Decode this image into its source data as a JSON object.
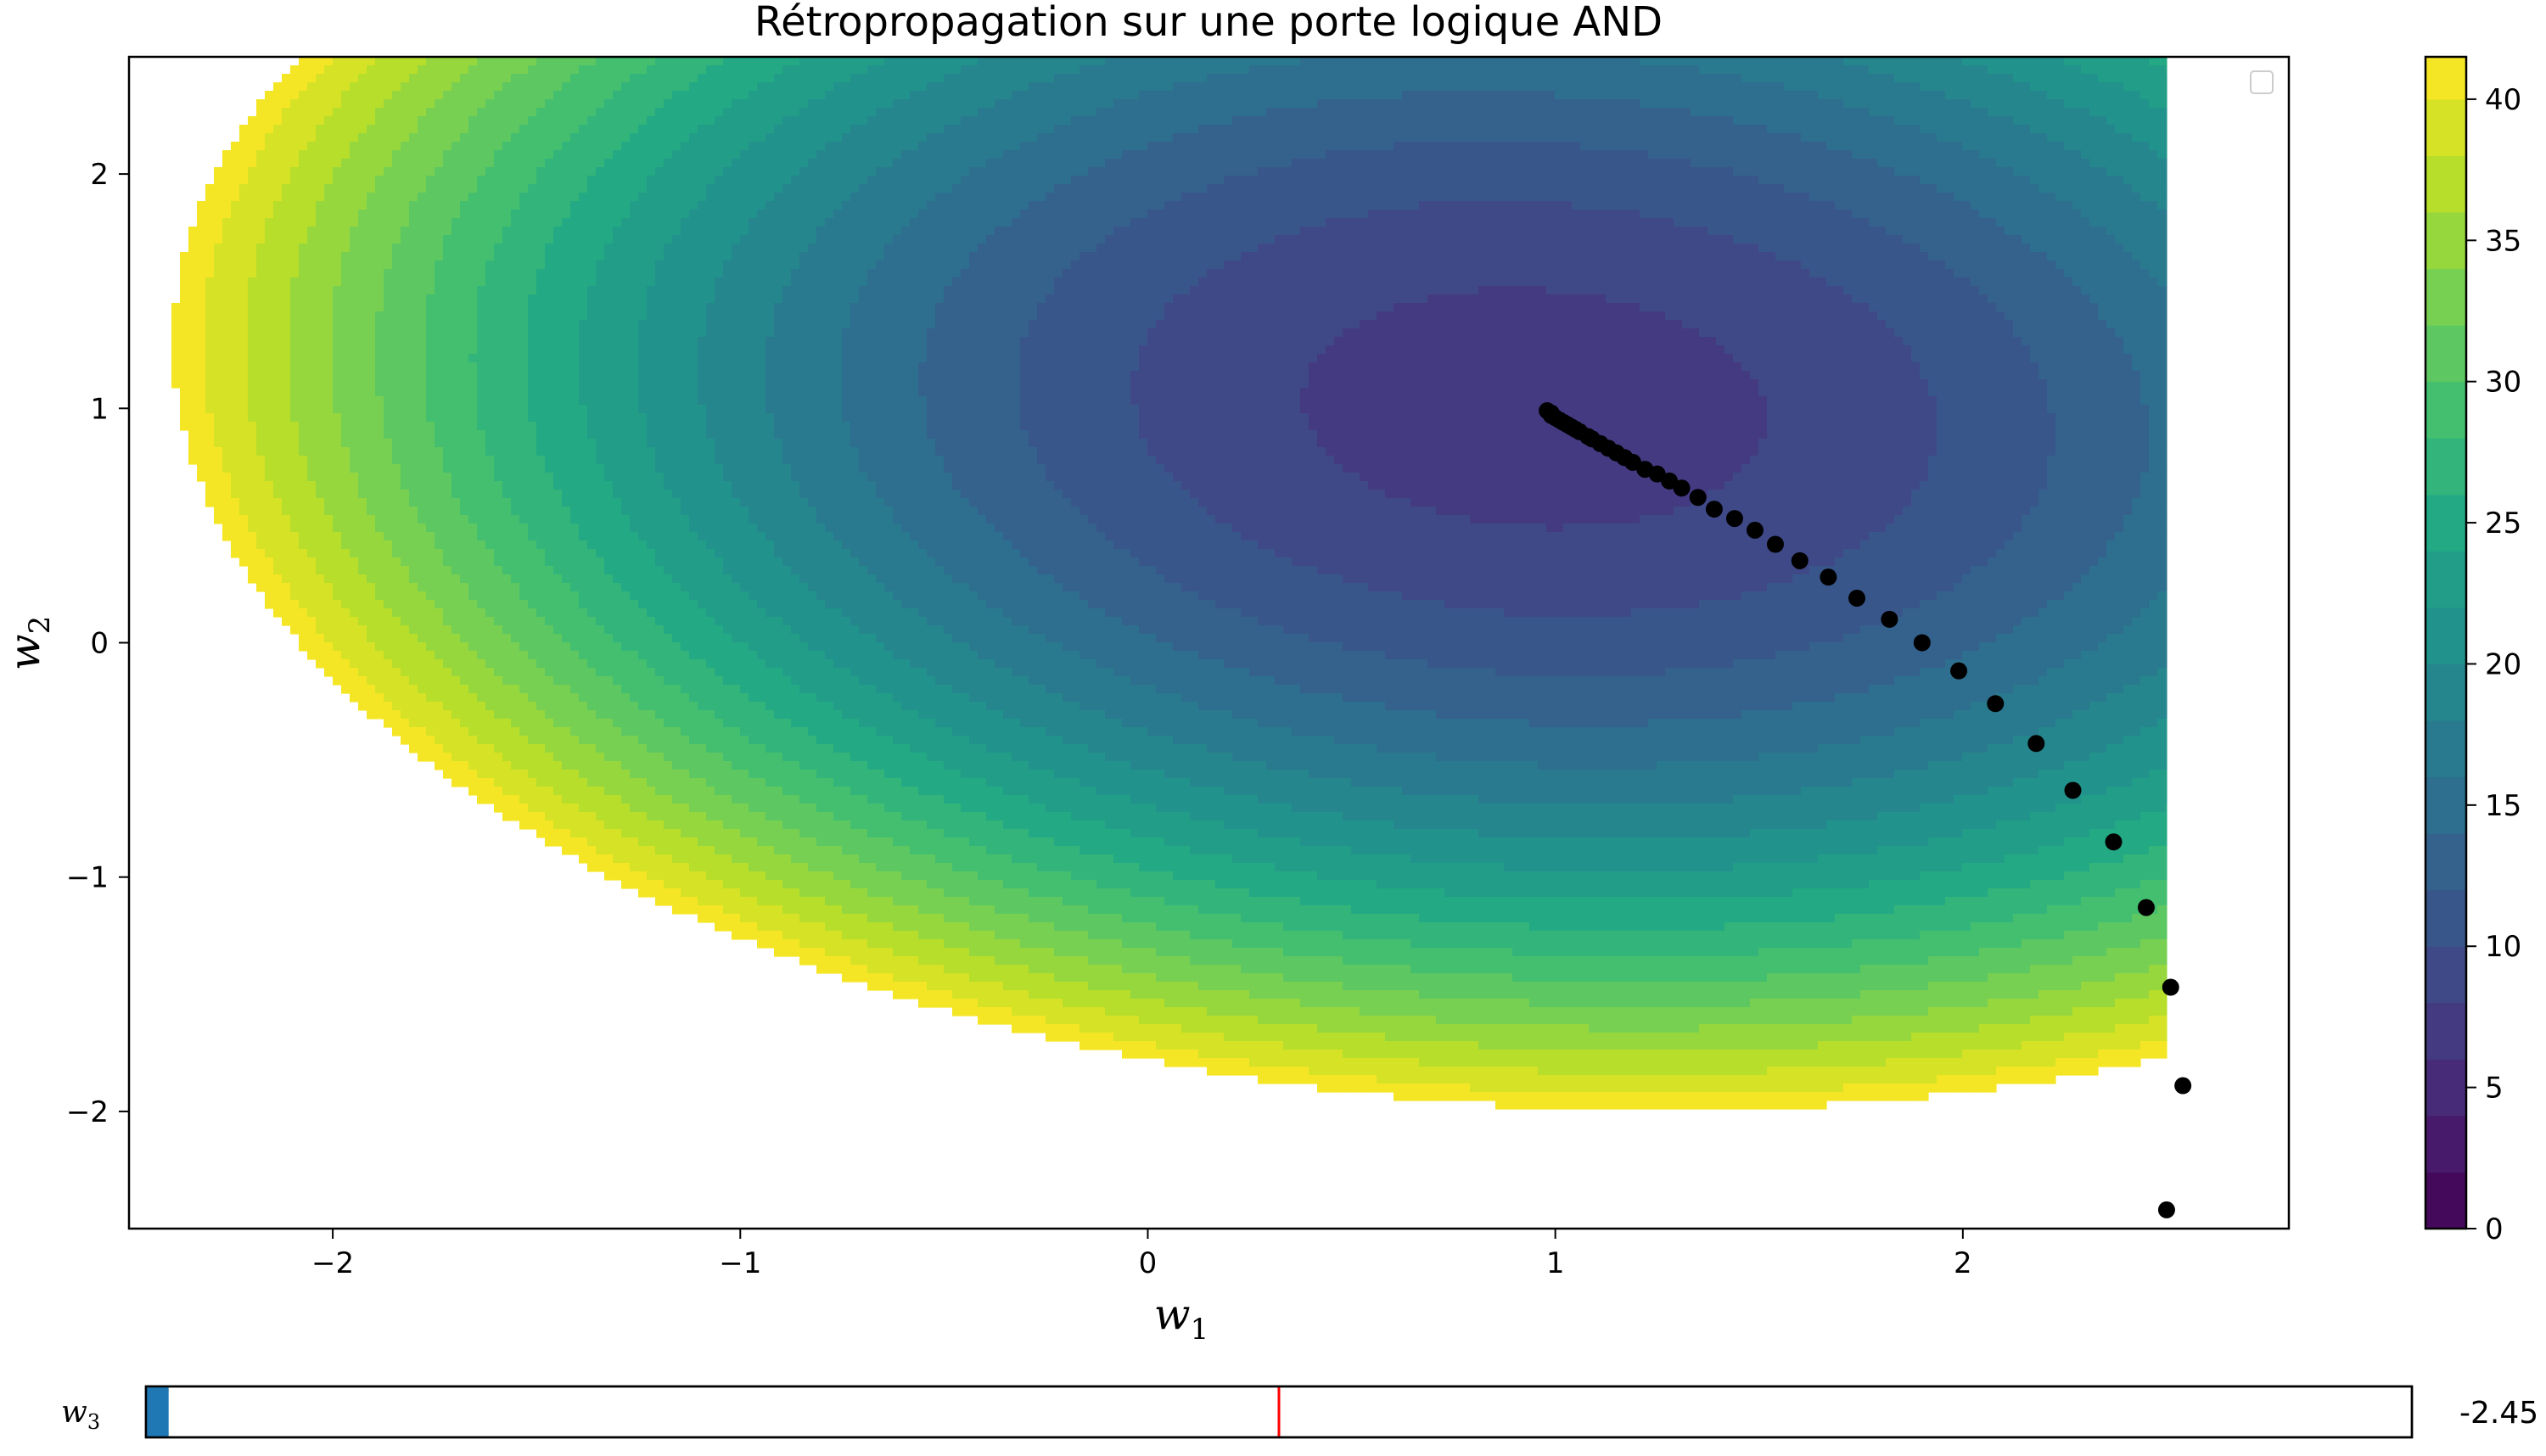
{
  "window": {
    "title": "Rétropropagation sur une porte logique AND"
  },
  "chart_data": {
    "type": "contourf",
    "title": "Rétropropagation sur une porte logique AND",
    "xlabel": "w",
    "xlabel_sub": "1",
    "ylabel": "w",
    "ylabel_sub": "2",
    "xlim": [
      -2.5,
      2.8
    ],
    "ylim": [
      -2.5,
      2.5
    ],
    "x_ticks": [
      -2,
      -1,
      0,
      1,
      2
    ],
    "y_ticks": [
      -2,
      -1,
      0,
      1,
      2
    ],
    "x_tick_labels": [
      "−2",
      "−1",
      "0",
      "1",
      "2"
    ],
    "y_tick_labels": [
      "−2",
      "−1",
      "0",
      "1",
      "2"
    ],
    "contour_data_xmax": 2.5,
    "colormap": "viridis",
    "colorbar": {
      "range": [
        0,
        41.5
      ],
      "ticks": [
        0,
        5,
        10,
        15,
        20,
        25,
        30,
        35,
        40
      ],
      "tick_labels": [
        "0",
        "5",
        "10",
        "15",
        "20",
        "25",
        "30",
        "35",
        "40"
      ],
      "level_step": 2
    },
    "loss_surface_approx": {
      "center": [
        0.95,
        1.0
      ],
      "min_value": 7.0,
      "ellipse_dir_deg": -20,
      "a_major": 0.15,
      "b_minor": 0.2
    },
    "legend": {
      "placement": "upper right",
      "entries": []
    },
    "grid": false,
    "series": [
      {
        "type": "scatter",
        "color": "#000000",
        "points": [
          [
            2.5,
            -2.42
          ],
          [
            2.54,
            -1.89
          ],
          [
            2.51,
            -1.47
          ],
          [
            2.45,
            -1.13
          ],
          [
            2.37,
            -0.85
          ],
          [
            2.27,
            -0.63
          ],
          [
            2.18,
            -0.43
          ],
          [
            2.08,
            -0.26
          ],
          [
            1.99,
            -0.12
          ],
          [
            1.9,
            0.0
          ],
          [
            1.82,
            0.1
          ],
          [
            1.74,
            0.19
          ],
          [
            1.67,
            0.28
          ],
          [
            1.6,
            0.35
          ],
          [
            1.54,
            0.42
          ],
          [
            1.49,
            0.48
          ],
          [
            1.44,
            0.53
          ],
          [
            1.39,
            0.57
          ],
          [
            1.35,
            0.62
          ],
          [
            1.31,
            0.66
          ],
          [
            1.28,
            0.69
          ],
          [
            1.25,
            0.72
          ],
          [
            1.22,
            0.74
          ],
          [
            1.19,
            0.77
          ],
          [
            1.17,
            0.79
          ],
          [
            1.15,
            0.81
          ],
          [
            1.13,
            0.83
          ],
          [
            1.11,
            0.85
          ],
          [
            1.09,
            0.87
          ],
          [
            1.08,
            0.88
          ],
          [
            1.06,
            0.9
          ],
          [
            1.05,
            0.91
          ],
          [
            1.04,
            0.92
          ],
          [
            1.03,
            0.93
          ],
          [
            1.02,
            0.94
          ],
          [
            1.01,
            0.95
          ],
          [
            1.0,
            0.96
          ],
          [
            0.99,
            0.97
          ],
          [
            0.99,
            0.98
          ],
          [
            0.98,
            0.99
          ]
        ]
      }
    ]
  },
  "slider": {
    "label": "w",
    "label_sub": "3",
    "value": -2.45,
    "value_text": "-2.45",
    "range": [
      -2.5,
      2.5
    ],
    "initial_value": 0.0,
    "fill_color": "#1f77b4",
    "marker_color": "#ff0000"
  }
}
